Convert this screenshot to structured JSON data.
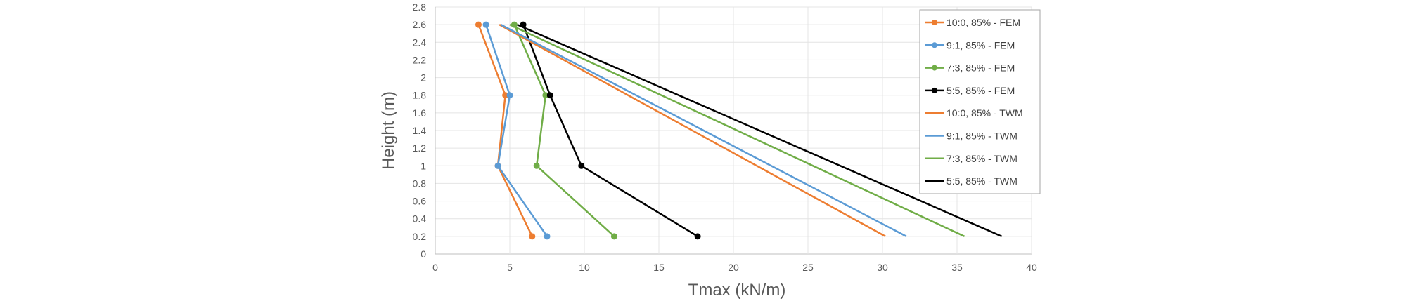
{
  "chart_data": {
    "type": "line",
    "xlabel": "Tmax (kN/m)",
    "ylabel": "Height (m)",
    "xlim": [
      0,
      40
    ],
    "ylim": [
      0,
      2.8
    ],
    "xticks": [
      "0",
      "5",
      "10",
      "15",
      "20",
      "25",
      "30",
      "35",
      "40"
    ],
    "yticks": [
      "0",
      "0.2",
      "0.4",
      "0.6",
      "0.8",
      "1",
      "1.2",
      "1.4",
      "1.6",
      "1.8",
      "2",
      "2.2",
      "2.4",
      "2.6",
      "2.8"
    ],
    "grid": true,
    "legend_position": "top-right",
    "series": [
      {
        "name": "10:0, 85% - FEM",
        "color": "#ED7D31",
        "markers": true,
        "points": [
          [
            6.5,
            0.2
          ],
          [
            4.2,
            1.0
          ],
          [
            4.7,
            1.8
          ],
          [
            2.9,
            2.6
          ]
        ]
      },
      {
        "name": "9:1, 85% - FEM",
        "color": "#5B9BD5",
        "markers": true,
        "points": [
          [
            7.5,
            0.2
          ],
          [
            4.2,
            1.0
          ],
          [
            5.0,
            1.8
          ],
          [
            3.4,
            2.6
          ]
        ]
      },
      {
        "name": "7:3, 85% - FEM",
        "color": "#70AD47",
        "markers": true,
        "points": [
          [
            12.0,
            0.2
          ],
          [
            6.8,
            1.0
          ],
          [
            7.4,
            1.8
          ],
          [
            5.3,
            2.6
          ]
        ]
      },
      {
        "name": "5:5, 85% - FEM",
        "color": "#000000",
        "markers": true,
        "points": [
          [
            17.6,
            0.2
          ],
          [
            9.8,
            1.0
          ],
          [
            7.7,
            1.8
          ],
          [
            5.9,
            2.6
          ]
        ]
      },
      {
        "name": "10:0, 85% - TWM",
        "color": "#ED7D31",
        "markers": false,
        "points": [
          [
            30.2,
            0.2
          ],
          [
            4.3,
            2.6
          ]
        ]
      },
      {
        "name": "9:1, 85% - TWM",
        "color": "#5B9BD5",
        "markers": false,
        "points": [
          [
            31.6,
            0.2
          ],
          [
            4.4,
            2.6
          ]
        ]
      },
      {
        "name": "7:3, 85% - TWM",
        "color": "#70AD47",
        "markers": false,
        "points": [
          [
            35.5,
            0.2
          ],
          [
            5.0,
            2.6
          ]
        ]
      },
      {
        "name": "5:5, 85% - TWM",
        "color": "#000000",
        "markers": false,
        "points": [
          [
            38.0,
            0.2
          ],
          [
            5.5,
            2.6
          ]
        ]
      }
    ]
  }
}
